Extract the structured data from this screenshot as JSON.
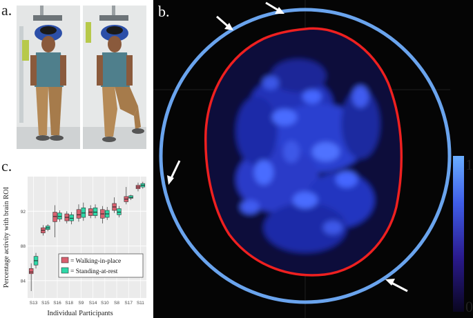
{
  "figure": {
    "panel_labels": {
      "a": "a.",
      "b": "b.",
      "c": "c."
    },
    "colorbar": {
      "max_label": "1",
      "min_label": "0"
    }
  },
  "chart_data": {
    "type": "box",
    "title": "",
    "xlabel": "Individual Participants",
    "ylabel": "Percentage activity with brain ROI",
    "categories": [
      "S13",
      "S15",
      "S16",
      "S18",
      "S9",
      "S14",
      "S10",
      "S8",
      "S17",
      "S11"
    ],
    "yticks": [
      84,
      88,
      92
    ],
    "ylim": [
      82,
      96
    ],
    "grid": true,
    "legend_position": "bottom-right",
    "series": [
      {
        "name": "= Walking-in-place",
        "color": "#d95f6e",
        "boxes": [
          {
            "min": 82.8,
            "q1": 84.8,
            "median": 85.0,
            "q3": 85.4,
            "max": 86.0
          },
          {
            "min": 89.2,
            "q1": 89.5,
            "median": 89.8,
            "q3": 90.1,
            "max": 90.4
          },
          {
            "min": 89.0,
            "q1": 90.8,
            "median": 91.4,
            "q3": 91.9,
            "max": 92.7
          },
          {
            "min": 90.6,
            "q1": 90.9,
            "median": 91.3,
            "q3": 91.7,
            "max": 92.0
          },
          {
            "min": 90.8,
            "q1": 91.2,
            "median": 91.6,
            "q3": 92.2,
            "max": 92.8
          },
          {
            "min": 91.2,
            "q1": 91.5,
            "median": 91.9,
            "q3": 92.3,
            "max": 92.7
          },
          {
            "min": 90.6,
            "q1": 91.2,
            "median": 91.7,
            "q3": 92.2,
            "max": 92.6
          },
          {
            "min": 91.8,
            "q1": 92.1,
            "median": 92.5,
            "q3": 92.9,
            "max": 93.6
          },
          {
            "min": 92.8,
            "q1": 93.1,
            "median": 93.4,
            "q3": 93.7,
            "max": 94.8
          },
          {
            "min": 94.3,
            "q1": 94.6,
            "median": 94.8,
            "q3": 95.0,
            "max": 95.3
          }
        ]
      },
      {
        "name": "= Standing-at-rest",
        "color": "#2ed8a8",
        "boxes": [
          {
            "min": 85.4,
            "q1": 85.8,
            "median": 86.3,
            "q3": 86.8,
            "max": 87.2
          },
          {
            "min": 89.7,
            "q1": 89.9,
            "median": 90.1,
            "q3": 90.3,
            "max": 90.5
          },
          {
            "min": 90.8,
            "q1": 91.1,
            "median": 91.4,
            "q3": 91.8,
            "max": 92.1
          },
          {
            "min": 90.5,
            "q1": 90.9,
            "median": 91.2,
            "q3": 91.6,
            "max": 91.9
          },
          {
            "min": 90.9,
            "q1": 91.3,
            "median": 91.8,
            "q3": 92.4,
            "max": 93.0
          },
          {
            "min": 91.2,
            "q1": 91.5,
            "median": 91.9,
            "q3": 92.4,
            "max": 92.8
          },
          {
            "min": 91.0,
            "q1": 91.3,
            "median": 91.7,
            "q3": 92.1,
            "max": 92.5
          },
          {
            "min": 91.3,
            "q1": 91.6,
            "median": 91.9,
            "q3": 92.3,
            "max": 92.6
          },
          {
            "min": 93.3,
            "q1": 93.5,
            "median": 93.6,
            "q3": 93.8,
            "max": 93.9
          },
          {
            "min": 94.6,
            "q1": 94.8,
            "median": 95.0,
            "q3": 95.2,
            "max": 95.4
          }
        ]
      }
    ]
  }
}
